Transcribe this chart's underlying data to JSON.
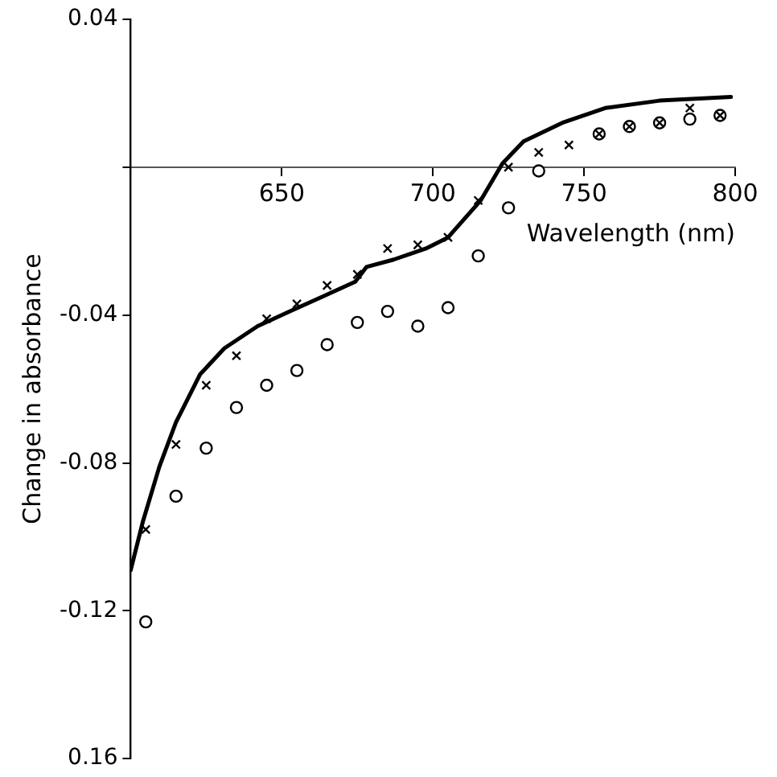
{
  "chart_data": {
    "type": "line",
    "xlabel": "Wavelength (nm)",
    "ylabel": "Change in absorbance",
    "xlim": [
      600,
      800
    ],
    "xticks": [
      650,
      700,
      750,
      800
    ],
    "ylim": [
      -0.16,
      0.04
    ],
    "yticks": [
      {
        "value": 0.04,
        "label": "0.04"
      },
      {
        "value": 0,
        "label": null
      },
      {
        "value": -0.04,
        "label": "-0.04"
      },
      {
        "value": -0.08,
        "label": "-0.08"
      },
      {
        "value": -0.12,
        "label": "-0.12"
      },
      {
        "value": -0.16,
        "label": "0.16"
      }
    ],
    "grid": false,
    "legend": false,
    "series": [
      {
        "type": "line",
        "color": "#000000",
        "marker": "none",
        "line_style": "solid",
        "x": [
          600,
          604,
          609.5,
          615,
          623,
          631,
          642,
          652.7,
          663.5,
          674.3,
          678,
          687,
          697.7,
          705,
          715.8,
          723,
          730,
          742.8,
          757,
          775,
          798.6
        ],
        "values": [
          -0.109,
          -0.096,
          -0.081,
          -0.069,
          -0.056,
          -0.049,
          -0.043,
          -0.039,
          -0.035,
          -0.031,
          -0.027,
          -0.025,
          -0.022,
          -0.019,
          -0.009,
          0.001,
          0.007,
          0.012,
          0.016,
          0.018,
          0.019
        ]
      },
      {
        "type": "scatter",
        "color": "#000000",
        "marker": "cross",
        "x": [
          605,
          615,
          625,
          635,
          645,
          655,
          665,
          675,
          685,
          695,
          705,
          715,
          725,
          735,
          745,
          755,
          765,
          775,
          785,
          795
        ],
        "values": [
          -0.098,
          -0.075,
          -0.059,
          -0.051,
          -0.041,
          -0.037,
          -0.032,
          -0.029,
          -0.022,
          -0.021,
          -0.019,
          -0.009,
          0.0,
          0.004,
          0.006,
          0.009,
          0.011,
          0.012,
          0.016,
          0.014
        ]
      },
      {
        "type": "scatter",
        "color": "#000000",
        "marker": "circle",
        "x": [
          605,
          615,
          625,
          635,
          645,
          655,
          665,
          675,
          685,
          695,
          705,
          715,
          725,
          735,
          745,
          755,
          765,
          775,
          785,
          795
        ],
        "values": [
          -0.123,
          -0.089,
          -0.076,
          -0.065,
          -0.059,
          -0.055,
          -0.048,
          -0.042,
          -0.039,
          -0.043,
          -0.038,
          -0.024,
          -0.011,
          -0.001,
          null,
          0.009,
          0.011,
          0.012,
          0.013,
          0.014
        ]
      }
    ]
  }
}
